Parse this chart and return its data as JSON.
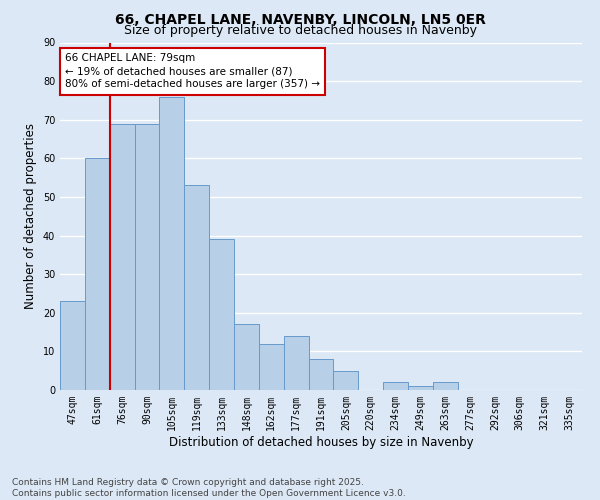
{
  "title": "66, CHAPEL LANE, NAVENBY, LINCOLN, LN5 0ER",
  "subtitle": "Size of property relative to detached houses in Navenby",
  "xlabel": "Distribution of detached houses by size in Navenby",
  "ylabel": "Number of detached properties",
  "categories": [
    "47sqm",
    "61sqm",
    "76sqm",
    "90sqm",
    "105sqm",
    "119sqm",
    "133sqm",
    "148sqm",
    "162sqm",
    "177sqm",
    "191sqm",
    "205sqm",
    "220sqm",
    "234sqm",
    "249sqm",
    "263sqm",
    "277sqm",
    "292sqm",
    "306sqm",
    "321sqm",
    "335sqm"
  ],
  "values": [
    23,
    60,
    69,
    69,
    76,
    53,
    39,
    17,
    12,
    14,
    8,
    5,
    0,
    2,
    1,
    2,
    0,
    0,
    0,
    0,
    0
  ],
  "bar_color": "#b8cfe8",
  "bar_edge_color": "#6699cc",
  "vline_index": 1.5,
  "marker_label": "66 CHAPEL LANE: 79sqm",
  "annotation_line1": "← 19% of detached houses are smaller (87)",
  "annotation_line2": "80% of semi-detached houses are larger (357) →",
  "annotation_box_facecolor": "#ffffff",
  "annotation_box_edgecolor": "#cc0000",
  "vline_color": "#cc0000",
  "ylim": [
    0,
    90
  ],
  "yticks": [
    0,
    10,
    20,
    30,
    40,
    50,
    60,
    70,
    80,
    90
  ],
  "background_color": "#dce8f5",
  "grid_color": "#ffffff",
  "footer_line1": "Contains HM Land Registry data © Crown copyright and database right 2025.",
  "footer_line2": "Contains public sector information licensed under the Open Government Licence v3.0.",
  "title_fontsize": 10,
  "subtitle_fontsize": 9,
  "axis_label_fontsize": 8.5,
  "tick_fontsize": 7,
  "annotation_fontsize": 7.5,
  "footer_fontsize": 6.5
}
